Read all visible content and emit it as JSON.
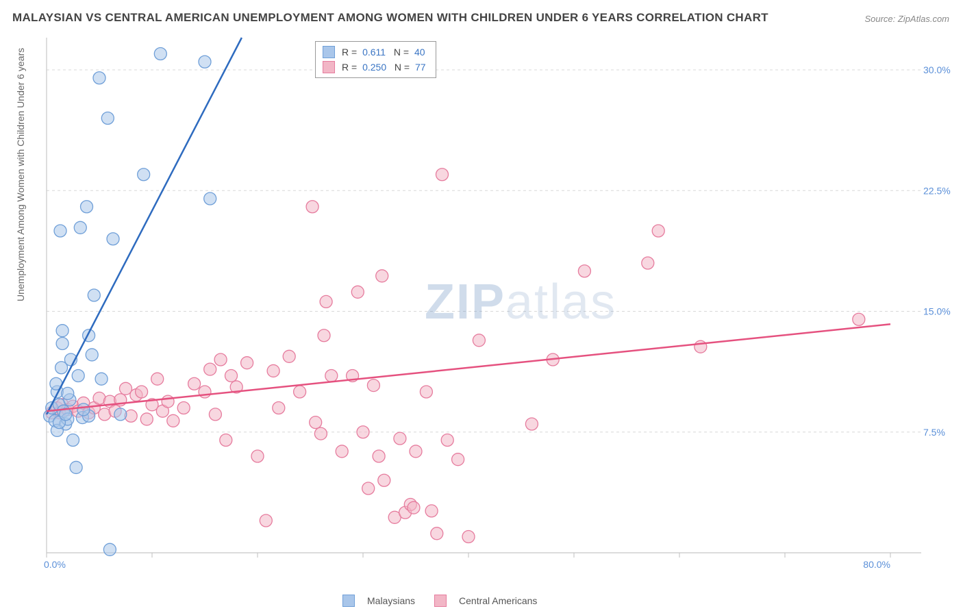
{
  "title": "MALAYSIAN VS CENTRAL AMERICAN UNEMPLOYMENT AMONG WOMEN WITH CHILDREN UNDER 6 YEARS CORRELATION CHART",
  "source": "Source: ZipAtlas.com",
  "y_axis_label": "Unemployment Among Women with Children Under 6 years",
  "chart": {
    "type": "scatter",
    "background_color": "#ffffff",
    "grid_color": "#d8d8d8",
    "axis_color": "#c8c8c8",
    "tick_color": "#bfbfbf",
    "tick_label_color": "#5a8fd8",
    "xlim": [
      0,
      80
    ],
    "ylim": [
      0,
      32
    ],
    "x_ticks": [
      0,
      10,
      20,
      30,
      40,
      50,
      60,
      70,
      80
    ],
    "x_tick_labels": {
      "0": "0.0%",
      "80": "80.0%"
    },
    "y_gridlines": [
      7.5,
      15.0,
      22.5,
      30.0
    ],
    "y_tick_labels": [
      "7.5%",
      "15.0%",
      "22.5%",
      "30.0%"
    ],
    "marker_radius": 9,
    "marker_opacity": 0.55,
    "line_width": 2.5,
    "series": [
      {
        "name": "Malaysians",
        "fill": "#a9c6ea",
        "stroke": "#6f9fd8",
        "line_color": "#2e6bbf",
        "R": "0.611",
        "N": "40",
        "regression": {
          "x1": 0,
          "y1": 8.6,
          "x2": 18.5,
          "y2": 32
        },
        "points": [
          [
            0.3,
            8.5
          ],
          [
            0.5,
            9.0
          ],
          [
            0.8,
            8.2
          ],
          [
            1.0,
            10.0
          ],
          [
            1.2,
            9.2
          ],
          [
            1.4,
            11.5
          ],
          [
            1.5,
            13.0
          ],
          [
            1.5,
            13.8
          ],
          [
            1.6,
            8.8
          ],
          [
            1.8,
            8.0
          ],
          [
            2.0,
            8.3
          ],
          [
            2.2,
            9.5
          ],
          [
            2.3,
            12.0
          ],
          [
            2.5,
            7.0
          ],
          [
            2.8,
            5.3
          ],
          [
            3.0,
            11.0
          ],
          [
            3.2,
            20.2
          ],
          [
            3.4,
            8.4
          ],
          [
            3.8,
            21.5
          ],
          [
            4.0,
            8.5
          ],
          [
            4.0,
            13.5
          ],
          [
            4.5,
            16.0
          ],
          [
            5.0,
            29.5
          ],
          [
            5.2,
            10.8
          ],
          [
            5.8,
            27.0
          ],
          [
            6.0,
            0.2
          ],
          [
            6.3,
            19.5
          ],
          [
            7.0,
            8.6
          ],
          [
            9.2,
            23.5
          ],
          [
            10.8,
            31.0
          ],
          [
            15.0,
            30.5
          ],
          [
            15.5,
            22.0
          ],
          [
            1.0,
            7.6
          ],
          [
            1.2,
            8.1
          ],
          [
            1.8,
            8.6
          ],
          [
            2.0,
            9.9
          ],
          [
            3.5,
            8.9
          ],
          [
            4.3,
            12.3
          ],
          [
            1.3,
            20.0
          ],
          [
            0.9,
            10.5
          ]
        ]
      },
      {
        "name": "Central Americans",
        "fill": "#f2b6c6",
        "stroke": "#e67c9e",
        "line_color": "#e5517f",
        "R": "0.250",
        "N": "77",
        "regression": {
          "x1": 0,
          "y1": 8.8,
          "x2": 80,
          "y2": 14.2
        },
        "points": [
          [
            0.5,
            8.7
          ],
          [
            1.0,
            9.0
          ],
          [
            1.2,
            8.7
          ],
          [
            1.5,
            9.2
          ],
          [
            2.0,
            8.9
          ],
          [
            2.5,
            9.1
          ],
          [
            3.0,
            8.8
          ],
          [
            3.5,
            9.3
          ],
          [
            4.0,
            8.7
          ],
          [
            4.5,
            9.0
          ],
          [
            5.0,
            9.6
          ],
          [
            5.5,
            8.6
          ],
          [
            6.0,
            9.4
          ],
          [
            6.5,
            8.8
          ],
          [
            7.0,
            9.5
          ],
          [
            7.5,
            10.2
          ],
          [
            8.0,
            8.5
          ],
          [
            8.5,
            9.8
          ],
          [
            9.0,
            10.0
          ],
          [
            9.5,
            8.3
          ],
          [
            10.0,
            9.2
          ],
          [
            10.5,
            10.8
          ],
          [
            11.0,
            8.8
          ],
          [
            11.5,
            9.4
          ],
          [
            12.0,
            8.2
          ],
          [
            13.0,
            9.0
          ],
          [
            14.0,
            10.5
          ],
          [
            15.0,
            10.0
          ],
          [
            15.5,
            11.4
          ],
          [
            16.0,
            8.6
          ],
          [
            16.5,
            12.0
          ],
          [
            17.0,
            7.0
          ],
          [
            17.5,
            11.0
          ],
          [
            18.0,
            10.3
          ],
          [
            19.0,
            11.8
          ],
          [
            20.0,
            6.0
          ],
          [
            20.8,
            2.0
          ],
          [
            21.5,
            11.3
          ],
          [
            22.0,
            9.0
          ],
          [
            23.0,
            12.2
          ],
          [
            24.0,
            10.0
          ],
          [
            25.2,
            21.5
          ],
          [
            25.5,
            8.1
          ],
          [
            26.0,
            7.4
          ],
          [
            26.5,
            15.6
          ],
          [
            27.0,
            11.0
          ],
          [
            28.0,
            6.3
          ],
          [
            29.0,
            11.0
          ],
          [
            29.5,
            16.2
          ],
          [
            30.0,
            7.5
          ],
          [
            30.5,
            4.0
          ],
          [
            31.0,
            10.4
          ],
          [
            31.5,
            6.0
          ],
          [
            32.0,
            4.5
          ],
          [
            33.0,
            2.2
          ],
          [
            33.5,
            7.1
          ],
          [
            34.0,
            2.5
          ],
          [
            35.0,
            6.3
          ],
          [
            36.0,
            10.0
          ],
          [
            36.5,
            2.6
          ],
          [
            37.0,
            1.2
          ],
          [
            38.0,
            7.0
          ],
          [
            39.0,
            5.8
          ],
          [
            40.0,
            1.0
          ],
          [
            37.5,
            23.5
          ],
          [
            41.0,
            13.2
          ],
          [
            46.0,
            8.0
          ],
          [
            48.0,
            12.0
          ],
          [
            51.0,
            17.5
          ],
          [
            57.0,
            18.0
          ],
          [
            58.0,
            20.0
          ],
          [
            62.0,
            12.8
          ],
          [
            77.0,
            14.5
          ],
          [
            26.3,
            13.5
          ],
          [
            31.8,
            17.2
          ],
          [
            34.5,
            3.0
          ],
          [
            34.8,
            2.8
          ]
        ]
      }
    ]
  },
  "legend": {
    "labels": [
      "Malaysians",
      "Central Americans"
    ]
  },
  "watermark": {
    "bold": "ZIP",
    "rest": "atlas"
  }
}
